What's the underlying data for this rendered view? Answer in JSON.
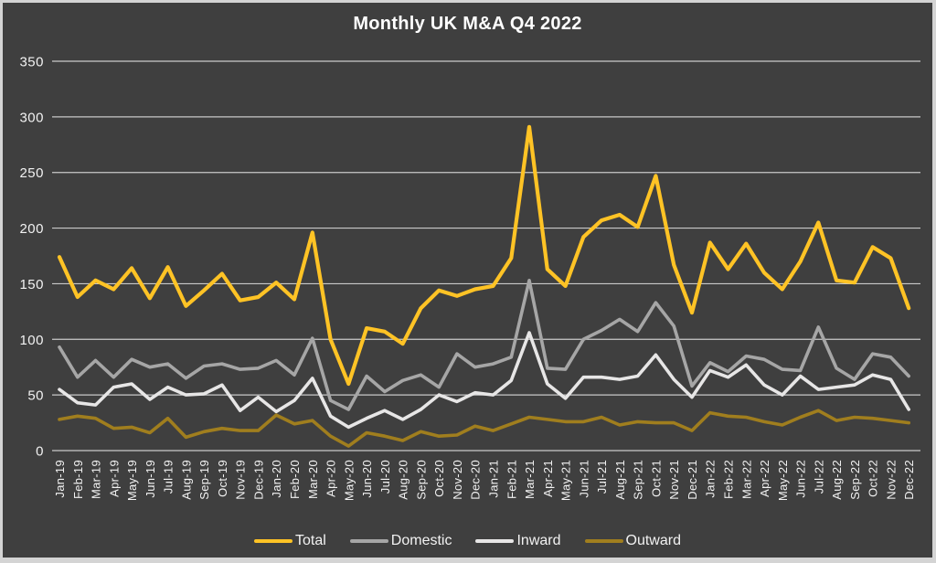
{
  "title": "Monthly UK M&A Q4 2022",
  "frame": {
    "background": "#3f3f3f",
    "border_color": "#d4d4d4"
  },
  "chart_data": {
    "type": "line",
    "title": "Monthly UK M&A Q4 2022",
    "grid": "horizontal",
    "legend_position": "bottom",
    "text_color": "#f2f2f2",
    "grid_color": "#e2e2e2",
    "ylim": [
      0,
      350
    ],
    "yticks": [
      350,
      300,
      250,
      200,
      150,
      100,
      50,
      0
    ],
    "categories": [
      "Jan-19",
      "Feb-19",
      "Mar-19",
      "Apr-19",
      "May-19",
      "Jun-19",
      "Jul-19",
      "Aug-19",
      "Sep-19",
      "Oct-19",
      "Nov-19",
      "Dec-19",
      "Jan-20",
      "Feb-20",
      "Mar-20",
      "Apr-20",
      "May-20",
      "Jun-20",
      "Jul-20",
      "Aug-20",
      "Sep-20",
      "Oct-20",
      "Nov-20",
      "Dec-20",
      "Jan-21",
      "Feb-21",
      "Mar-21",
      "Apr-21",
      "May-21",
      "Jun-21",
      "Jul-21",
      "Aug-21",
      "Sep-21",
      "Oct-21",
      "Nov-21",
      "Dec-21",
      "Jan-22",
      "Feb-22",
      "Mar-22",
      "Apr-22",
      "May-22",
      "Jun-22",
      "Jul-22",
      "Aug-22",
      "Sep-22",
      "Oct-22",
      "Nov-22",
      "Dec-22"
    ],
    "series": [
      {
        "name": "Total",
        "color": "#ffc325",
        "stroke_width": 4.2,
        "values": [
          174,
          138,
          153,
          145,
          164,
          137,
          165,
          130,
          144,
          159,
          135,
          138,
          151,
          136,
          196,
          100,
          60,
          110,
          107,
          96,
          128,
          144,
          139,
          145,
          148,
          173,
          291,
          163,
          148,
          192,
          207,
          212,
          201,
          247,
          167,
          124,
          187,
          163,
          186,
          160,
          145,
          170,
          205,
          153,
          151,
          183,
          173,
          128
        ]
      },
      {
        "name": "Domestic",
        "color": "#a6a6a6",
        "stroke_width": 3.6,
        "values": [
          93,
          66,
          81,
          66,
          82,
          75,
          78,
          65,
          76,
          78,
          73,
          74,
          81,
          68,
          101,
          45,
          37,
          67,
          53,
          63,
          68,
          57,
          87,
          75,
          78,
          84,
          153,
          74,
          73,
          100,
          108,
          118,
          107,
          133,
          112,
          58,
          79,
          71,
          85,
          82,
          73,
          72,
          111,
          74,
          64,
          87,
          84,
          67
        ]
      },
      {
        "name": "Inward",
        "color": "#e7e6e6",
        "stroke_width": 3.6,
        "values": [
          55,
          43,
          41,
          57,
          60,
          46,
          57,
          50,
          51,
          59,
          36,
          48,
          35,
          45,
          65,
          31,
          21,
          29,
          36,
          28,
          37,
          50,
          44,
          52,
          50,
          63,
          106,
          60,
          47,
          66,
          66,
          64,
          67,
          86,
          64,
          48,
          72,
          66,
          77,
          59,
          50,
          67,
          55,
          57,
          59,
          68,
          64,
          37
        ]
      },
      {
        "name": "Outward",
        "color": "#a07e1e",
        "stroke_width": 3.6,
        "values": [
          28,
          31,
          29,
          20,
          21,
          16,
          29,
          12,
          17,
          20,
          18,
          18,
          32,
          24,
          27,
          13,
          4,
          16,
          13,
          9,
          17,
          13,
          14,
          22,
          18,
          24,
          30,
          28,
          26,
          26,
          30,
          23,
          26,
          25,
          25,
          18,
          34,
          31,
          30,
          26,
          23,
          30,
          36,
          27,
          30,
          29,
          27,
          25
        ]
      }
    ]
  }
}
